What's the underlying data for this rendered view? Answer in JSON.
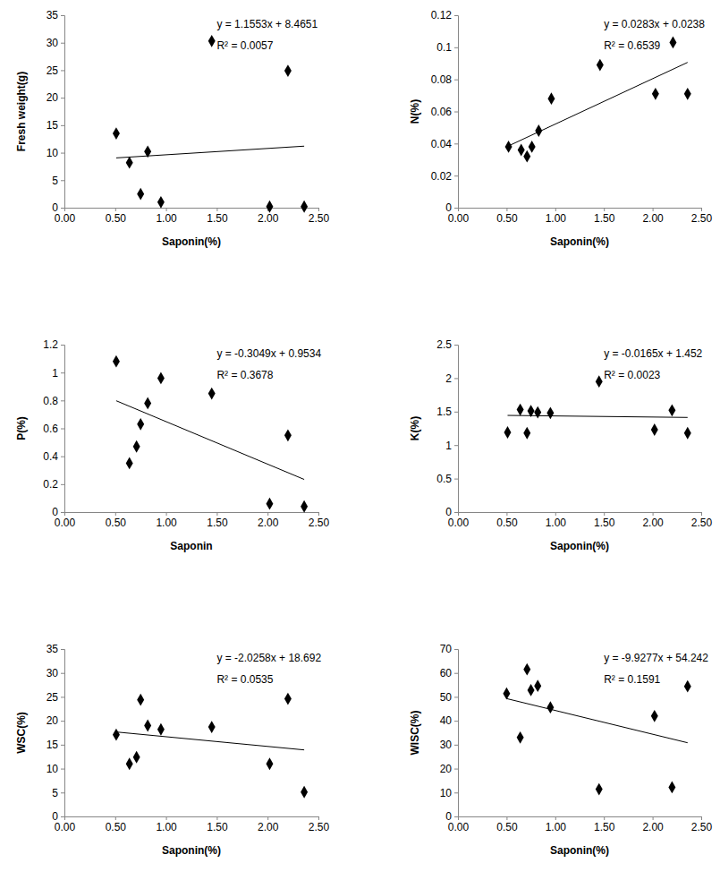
{
  "chart_data": [
    {
      "type": "scatter",
      "xlabel": "Saponin(%)",
      "ylabel": "Fresh weight(g)",
      "x": [
        0.51,
        0.64,
        0.75,
        0.82,
        0.95,
        1.45,
        2.02,
        2.2,
        2.36
      ],
      "values": [
        13.5,
        8.2,
        2.5,
        10.2,
        1.0,
        30.3,
        0.2,
        24.9,
        0.2
      ],
      "color": "#000000",
      "marker": "diamond",
      "grid": false,
      "xlim": [
        0,
        2.5
      ],
      "xticks": [
        {
          "value": 0,
          "label": "0.00"
        },
        {
          "value": 0.5,
          "label": "0.50"
        },
        {
          "value": 1,
          "label": "1.00"
        },
        {
          "value": 1.5,
          "label": "1.50"
        },
        {
          "value": 2,
          "label": "2.00"
        },
        {
          "value": 2.5,
          "label": "2.50"
        }
      ],
      "ylim": [
        0,
        35
      ],
      "yticks": [
        0,
        5,
        10,
        15,
        20,
        25,
        30,
        35
      ],
      "trendline": {
        "slope": 1.1553,
        "intercept": 8.4651,
        "x": [
          0.51,
          2.36
        ]
      },
      "annotations": [
        "y = 1.1553x + 8.4651",
        "R² = 0.0057"
      ]
    },
    {
      "type": "scatter",
      "xlabel": "Saponin(%)",
      "ylabel": "N(%)",
      "x": [
        0.52,
        0.65,
        0.71,
        0.76,
        0.83,
        0.96,
        1.46,
        2.03,
        2.21,
        2.36
      ],
      "values": [
        0.038,
        0.036,
        0.032,
        0.038,
        0.048,
        0.068,
        0.089,
        0.071,
        0.103,
        0.071
      ],
      "color": "#000000",
      "marker": "diamond",
      "grid": false,
      "xlim": [
        0,
        2.5
      ],
      "xticks": [
        {
          "value": 0,
          "label": "0.00"
        },
        {
          "value": 0.5,
          "label": "0.50"
        },
        {
          "value": 1,
          "label": "1.00"
        },
        {
          "value": 1.5,
          "label": "1.50"
        },
        {
          "value": 2,
          "label": "2.00"
        },
        {
          "value": 2.5,
          "label": "2.50"
        }
      ],
      "ylim": [
        0,
        0.12
      ],
      "yticks": [
        0,
        0.02,
        0.04,
        0.06,
        0.08,
        0.1,
        0.12
      ],
      "trendline": {
        "slope": 0.0283,
        "intercept": 0.0238,
        "x": [
          0.52,
          2.36
        ]
      },
      "annotations": [
        "y = 0.0283x + 0.0238",
        "R² = 0.6539"
      ]
    },
    {
      "type": "scatter",
      "xlabel": "Saponin",
      "ylabel": "P(%)",
      "x": [
        0.51,
        0.64,
        0.71,
        0.75,
        0.82,
        0.95,
        1.45,
        2.02,
        2.2,
        2.36
      ],
      "values": [
        1.08,
        0.35,
        0.47,
        0.63,
        0.78,
        0.96,
        0.85,
        0.06,
        0.55,
        0.04
      ],
      "color": "#000000",
      "marker": "diamond",
      "grid": false,
      "xlim": [
        0,
        2.5
      ],
      "xticks": [
        {
          "value": 0,
          "label": "0.00"
        },
        {
          "value": 0.5,
          "label": "0.50"
        },
        {
          "value": 1,
          "label": "1.00"
        },
        {
          "value": 1.5,
          "label": "1.50"
        },
        {
          "value": 2,
          "label": "2.00"
        },
        {
          "value": 2.5,
          "label": "2.50"
        }
      ],
      "ylim": [
        0,
        1.2
      ],
      "yticks": [
        0,
        0.2,
        0.4,
        0.6,
        0.8,
        1,
        1.2
      ],
      "trendline": {
        "slope": -0.3049,
        "intercept": 0.9534,
        "x": [
          0.51,
          2.36
        ]
      },
      "annotations": [
        "y = -0.3049x + 0.9534",
        "R² = 0.3678"
      ]
    },
    {
      "type": "scatter",
      "xlabel": "Saponin(%)",
      "ylabel": "K(%)",
      "x": [
        0.51,
        0.64,
        0.71,
        0.75,
        0.82,
        0.95,
        1.45,
        2.02,
        2.2,
        2.36
      ],
      "values": [
        1.19,
        1.53,
        1.18,
        1.51,
        1.49,
        1.48,
        1.95,
        1.23,
        1.52,
        1.18
      ],
      "color": "#000000",
      "marker": "diamond",
      "grid": false,
      "xlim": [
        0,
        2.5
      ],
      "xticks": [
        {
          "value": 0,
          "label": "0.00"
        },
        {
          "value": 0.5,
          "label": "0.50"
        },
        {
          "value": 1,
          "label": "1.00"
        },
        {
          "value": 1.5,
          "label": "1.50"
        },
        {
          "value": 2,
          "label": "2.00"
        },
        {
          "value": 2.5,
          "label": "2.50"
        }
      ],
      "ylim": [
        0,
        2.5
      ],
      "yticks": [
        0,
        0.5,
        1,
        1.5,
        2,
        2.5
      ],
      "trendline": {
        "slope": -0.0165,
        "intercept": 1.452,
        "x": [
          0.51,
          2.36
        ]
      },
      "annotations": [
        "y = -0.0165x + 1.452",
        "R² = 0.0023"
      ]
    },
    {
      "type": "scatter",
      "xlabel": "Saponin(%)",
      "ylabel": "WSC(%)",
      "x": [
        0.51,
        0.64,
        0.71,
        0.75,
        0.82,
        0.95,
        1.45,
        2.02,
        2.2,
        2.36
      ],
      "values": [
        17.1,
        11.0,
        12.4,
        24.4,
        19.0,
        18.2,
        18.7,
        11.0,
        24.6,
        5.1
      ],
      "color": "#000000",
      "marker": "diamond",
      "grid": false,
      "xlim": [
        0,
        2.5
      ],
      "xticks": [
        {
          "value": 0,
          "label": "0.00"
        },
        {
          "value": 0.5,
          "label": "0.50"
        },
        {
          "value": 1,
          "label": "1.00"
        },
        {
          "value": 1.5,
          "label": "1.50"
        },
        {
          "value": 2,
          "label": "2.00"
        },
        {
          "value": 2.5,
          "label": "2.50"
        }
      ],
      "ylim": [
        0,
        35
      ],
      "yticks": [
        0,
        5,
        10,
        15,
        20,
        25,
        30,
        35
      ],
      "trendline": {
        "slope": -2.0258,
        "intercept": 18.692,
        "x": [
          0.51,
          2.36
        ]
      },
      "annotations": [
        "y = -2.0258x + 18.692",
        "R² = 0.0535"
      ]
    },
    {
      "type": "scatter",
      "xlabel": "Saponin(%)",
      "ylabel": "WISC(%)",
      "x": [
        0.5,
        0.64,
        0.71,
        0.75,
        0.82,
        0.95,
        1.45,
        2.02,
        2.2,
        2.36
      ],
      "values": [
        51.4,
        33.0,
        61.5,
        52.8,
        54.6,
        45.6,
        11.4,
        42.0,
        12.2,
        54.4
      ],
      "color": "#000000",
      "marker": "diamond",
      "grid": false,
      "xlim": [
        0,
        2.5
      ],
      "xticks": [
        {
          "value": 0,
          "label": "0.00"
        },
        {
          "value": 0.5,
          "label": "0.50"
        },
        {
          "value": 1,
          "label": "1.00"
        },
        {
          "value": 1.5,
          "label": "1.50"
        },
        {
          "value": 2,
          "label": "2.00"
        },
        {
          "value": 2.5,
          "label": "2.50"
        }
      ],
      "ylim": [
        0,
        70
      ],
      "yticks": [
        0,
        10,
        20,
        30,
        40,
        50,
        60,
        70
      ],
      "trendline": {
        "slope": -9.9277,
        "intercept": 54.242,
        "x": [
          0.5,
          2.36
        ]
      },
      "annotations": [
        "y = -9.9277x + 54.242",
        "R² = 0.1591"
      ]
    }
  ]
}
